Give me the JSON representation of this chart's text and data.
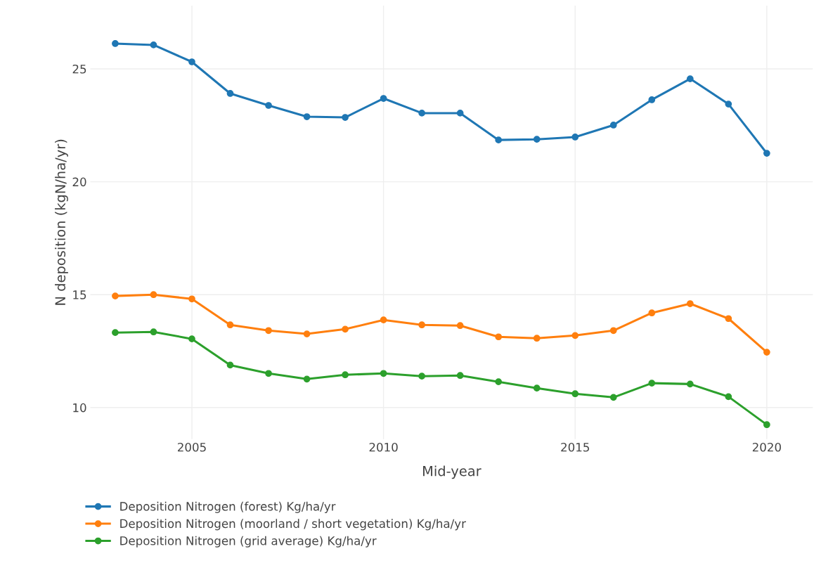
{
  "chart_data": {
    "type": "line",
    "xlabel": "Mid-year",
    "ylabel": "N deposition (kgN/ha/yr)",
    "x": [
      2003,
      2004,
      2005,
      2006,
      2007,
      2008,
      2009,
      2010,
      2011,
      2012,
      2013,
      2014,
      2015,
      2016,
      2017,
      2018,
      2019,
      2020
    ],
    "series": [
      {
        "name": "Deposition Nitrogen (forest) Kg/ha/yr",
        "color": "#1f77b4",
        "values": [
          26.12,
          26.06,
          25.31,
          23.91,
          23.38,
          22.88,
          22.85,
          23.69,
          23.04,
          23.04,
          21.85,
          21.88,
          21.98,
          22.51,
          23.63,
          24.56,
          23.44,
          21.26
        ]
      },
      {
        "name": "Deposition Nitrogen (moorland / short vegetation) Kg/ha/yr",
        "color": "#ff7f0e",
        "values": [
          14.94,
          15.0,
          14.81,
          13.66,
          13.41,
          13.26,
          13.47,
          13.88,
          13.66,
          13.63,
          13.13,
          13.07,
          13.19,
          13.41,
          14.19,
          14.6,
          13.94,
          12.45
        ]
      },
      {
        "name": "Deposition Nitrogen (grid average) Kg/ha/yr",
        "color": "#2ca02c",
        "values": [
          13.32,
          13.35,
          13.04,
          11.88,
          11.51,
          11.26,
          11.45,
          11.51,
          11.39,
          11.42,
          11.14,
          10.86,
          10.61,
          10.45,
          11.08,
          11.04,
          10.48,
          9.24
        ]
      }
    ],
    "xlim": [
      2002.35,
      2021.2
    ],
    "ylim": [
      8.6,
      27.8
    ],
    "xticks": [
      2005,
      2010,
      2015,
      2020
    ],
    "yticks": [
      10,
      15,
      20,
      25
    ],
    "grid": true,
    "legend": "bottom left",
    "marker": "circle",
    "line_style": "solid"
  }
}
